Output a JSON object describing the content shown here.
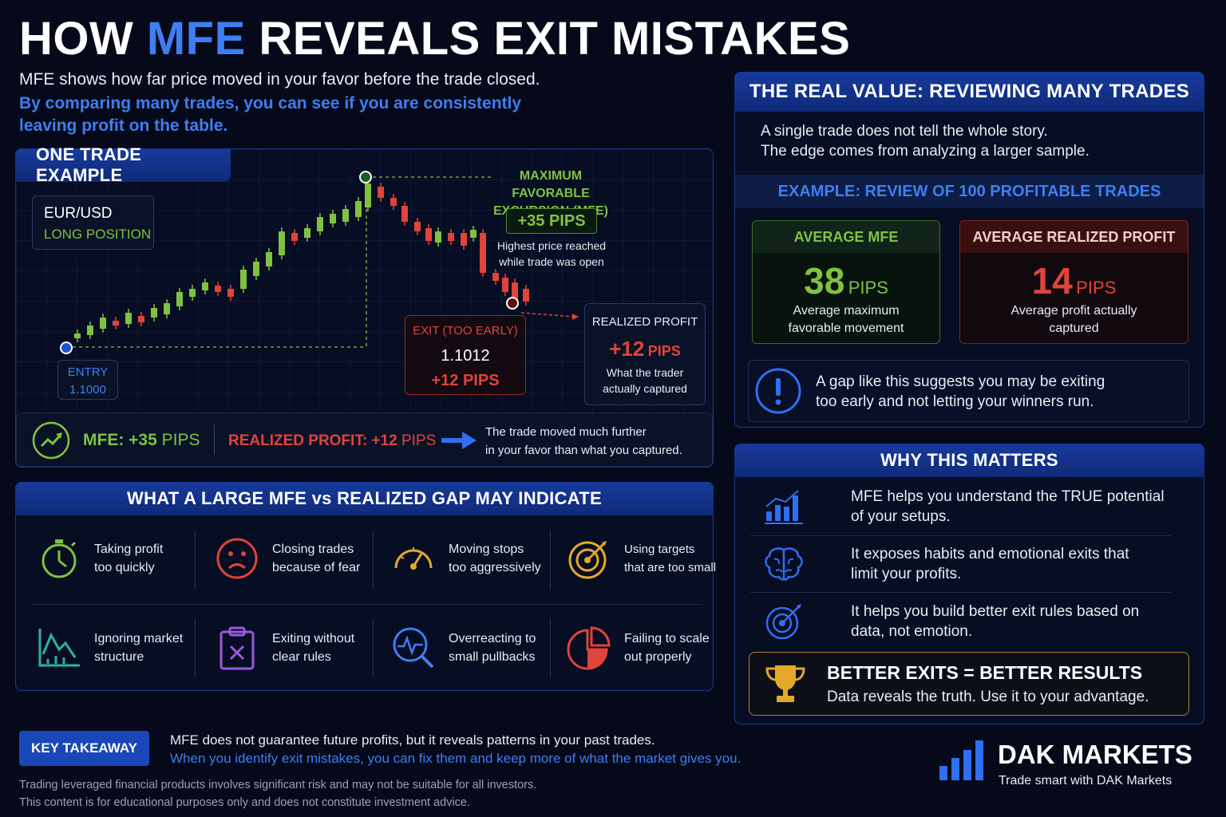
{
  "title": {
    "part1": "HOW ",
    "part2": "MFE",
    "part3": " REVEALS EXIT MISTAKES"
  },
  "subtitle": {
    "line1": "MFE shows how far price moved in your favor before the trade closed.",
    "line2": "By comparing many trades, you can see if you are consistently leaving profit on the table."
  },
  "one_trade": {
    "header": "ONE TRADE EXAMPLE",
    "pair": "EUR/USD",
    "position": "LONG POSITION",
    "mfe_label_1": "MAXIMUM FAVORABLE",
    "mfe_label_2": "EXCURSION (MFE)",
    "mfe_value": "+35 PIPS",
    "mfe_note_1": "Highest price reached",
    "mfe_note_2": "while trade was open",
    "entry_label": "ENTRY",
    "entry_price": "1.1000",
    "exit_label": "EXIT (TOO EARLY)",
    "exit_price": "1.1012",
    "exit_pips": "+12 PIPS",
    "realized_label": "REALIZED PROFIT",
    "realized_value": "+12",
    "realized_unit": "PIPS",
    "realized_note_1": "What the trader",
    "realized_note_2": "actually captured",
    "summary_mfe_prefix": "MFE: +35",
    "summary_mfe_unit": " PIPS",
    "summary_realized_prefix": "REALIZED PROFIT: +12",
    "summary_realized_unit": " PIPS",
    "summary_note_1": "The trade moved much further",
    "summary_note_2": "in your favor than what you captured."
  },
  "gap": {
    "header": "WHAT A LARGE MFE vs REALIZED GAP MAY INDICATE",
    "items": [
      {
        "l1": "Taking profit",
        "l2": "too quickly",
        "icon": "stopwatch-icon"
      },
      {
        "l1": "Closing trades",
        "l2": "because of fear",
        "icon": "sad-face-icon"
      },
      {
        "l1": "Moving stops",
        "l2": "too aggressively",
        "icon": "gauge-icon"
      },
      {
        "l1": "Using targets",
        "l2": "that are too small",
        "icon": "target-icon"
      },
      {
        "l1": "Ignoring market",
        "l2": "structure",
        "icon": "market-structure-icon"
      },
      {
        "l1": "Exiting without",
        "l2": "clear rules",
        "icon": "clipboard-x-icon"
      },
      {
        "l1": "Overreacting to",
        "l2": "small pullbacks",
        "icon": "magnifier-pulse-icon"
      },
      {
        "l1": "Failing to scale",
        "l2": "out properly",
        "icon": "pie-chart-icon"
      }
    ]
  },
  "value": {
    "header": "THE REAL VALUE: REVIEWING MANY TRADES",
    "text1": "A single trade does not tell the whole story.",
    "text2": "The edge comes from analyzing a larger sample.",
    "example_header": "EXAMPLE: REVIEW OF 100 PROFITABLE TRADES",
    "avg_mfe_label": "AVERAGE MFE",
    "avg_mfe_value": "38",
    "avg_mfe_unit": "PIPS",
    "avg_mfe_note_1": "Average maximum",
    "avg_mfe_note_2": "favorable movement",
    "avg_real_label": "AVERAGE REALIZED PROFIT",
    "avg_real_value": "14",
    "avg_real_unit": "PIPS",
    "avg_real_note_1": "Average profit actually",
    "avg_real_note_2": "captured",
    "warning_1": "A gap like this suggests you may be exiting",
    "warning_2": "too early and not letting your winners run."
  },
  "matters": {
    "header": "WHY THIS MATTERS",
    "rows": [
      {
        "l1": "MFE helps you understand the TRUE potential",
        "l2": "of your setups.",
        "icon": "bar-chart-icon"
      },
      {
        "l1": "It exposes habits and emotional exits that",
        "l2": "limit your profits.",
        "icon": "brain-icon"
      },
      {
        "l1": "It helps you build better exit rules based on",
        "l2": "data, not emotion.",
        "icon": "target-arrow-icon"
      }
    ],
    "banner_title": "BETTER EXITS = BETTER RESULTS",
    "banner_text": "Data reveals the truth. Use it to your advantage."
  },
  "footer": {
    "takeaway_label": "KEY TAKEAWAY",
    "takeaway_1": "MFE does not guarantee future profits, but it reveals patterns in your past trades.",
    "takeaway_2": "When you identify exit mistakes, you can fix them and keep more of what the market gives you.",
    "disclaimer_1": "Trading leveraged financial products involves significant risk and may not be suitable for all investors.",
    "disclaimer_2": "This content is for educational purposes only and does not constitute investment advice.",
    "brand": "DAK MARKETS",
    "tagline": "Trade smart with DAK Markets"
  },
  "colors": {
    "accent": "#3f7ef0",
    "green": "#7fc241",
    "red": "#e0443a",
    "gold": "#e3a92b"
  }
}
